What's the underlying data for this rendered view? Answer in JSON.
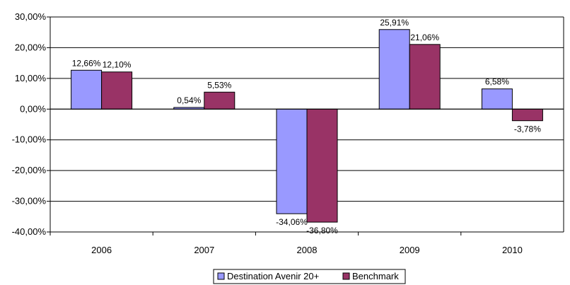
{
  "chart_data": {
    "type": "bar",
    "categories": [
      "2006",
      "2007",
      "2008",
      "2009",
      "2010"
    ],
    "series": [
      {
        "name": "Destination Avenir 20+",
        "values": [
          12.66,
          0.54,
          -34.06,
          25.91,
          6.58
        ],
        "labels": [
          "12,66%",
          "0,54%",
          "-34,06%",
          "25,91%",
          "6,58%"
        ]
      },
      {
        "name": "Benchmark",
        "values": [
          12.1,
          5.53,
          -36.8,
          21.06,
          -3.78
        ],
        "labels": [
          "12,10%",
          "5,53%",
          "-36,80%",
          "21,06%",
          "-3,78%"
        ]
      }
    ],
    "ylim": [
      -40,
      30
    ],
    "yticks": [
      30,
      20,
      10,
      0,
      -10,
      -20,
      -30,
      -40
    ],
    "ytick_labels": [
      "30,00%",
      "20,00%",
      "10,00%",
      "0,00%",
      "-10,00%",
      "-20,00%",
      "-30,00%",
      "-40,00%"
    ],
    "grid": true,
    "legend_position": "bottom",
    "colors": [
      "#9999ff",
      "#993366"
    ]
  }
}
